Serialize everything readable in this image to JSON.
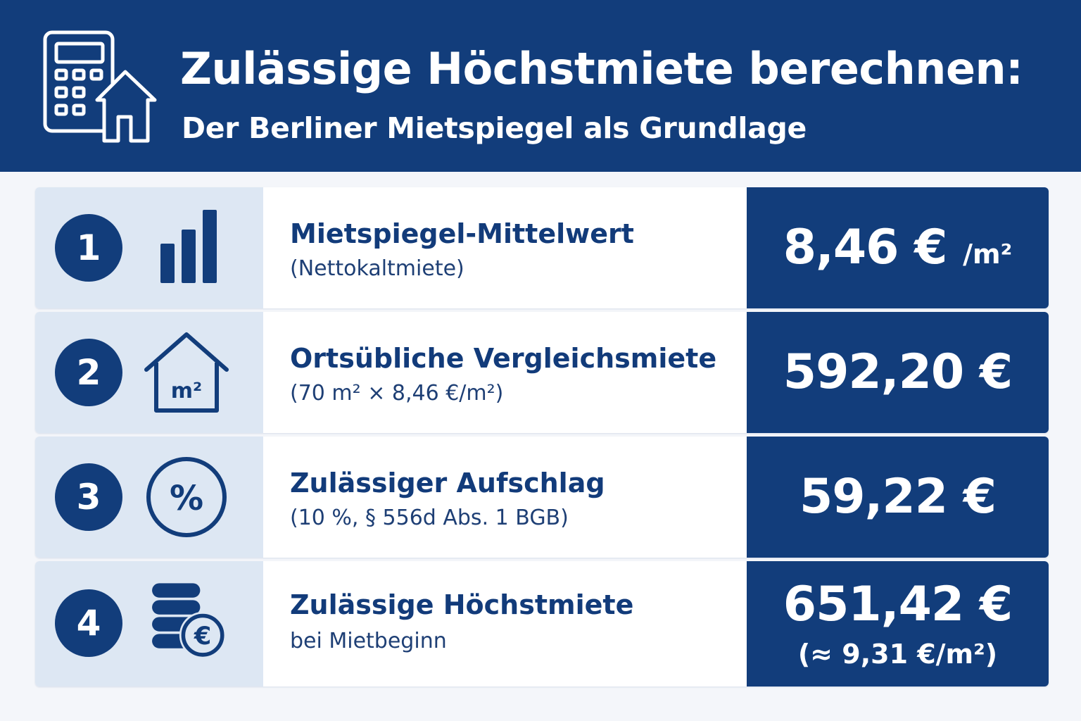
{
  "header": {
    "title": "Zulässige Höchstmiete berechnen:",
    "subtitle": "Der Berliner Mietspiegel als Grundlage",
    "icon": "calculator-house-icon"
  },
  "colors": {
    "primary": "#123d7b",
    "left_panel": "#dde7f3",
    "background": "#f4f6fa"
  },
  "rows": [
    {
      "number": "1",
      "icon": "bar-chart-icon",
      "label": "Mietspiegel-Mittelwert",
      "sublabel": "(Nettokaltmiete)",
      "value": "8,46 €",
      "unit": "/m²"
    },
    {
      "number": "2",
      "icon": "house-m2-icon",
      "icon_text": "m²",
      "label": "Ortsübliche Vergleichsmiete",
      "sublabel": "(70 m² × 8,46 €/m²)",
      "value": "592,20 €"
    },
    {
      "number": "3",
      "icon": "percent-icon",
      "icon_text": "%",
      "label": "Zulässiger Aufschlag",
      "sublabel": "(10 %, § 556d Abs. 1 BGB)",
      "value": "59,22 €"
    },
    {
      "number": "4",
      "icon": "coins-euro-icon",
      "icon_text": "€",
      "label": "Zulässige Höchstmiete",
      "sublabel": "bei Mietbeginn",
      "value": "651,42 €",
      "value_secondary": "(≈ 9,31 €/m²)"
    }
  ]
}
